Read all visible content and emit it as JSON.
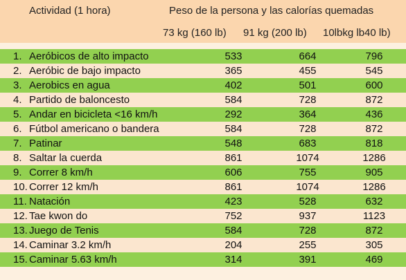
{
  "header": {
    "activity": "Actividad (1 hora)",
    "title": "Peso de la persona y las calorías quemadas",
    "col1": "73 kg (160 lb)",
    "col2": "91 kg (200 lb)",
    "col3": "10lbkg lb40 lb)"
  },
  "rows": [
    {
      "num": "1.",
      "name": "Aeróbicos de alto impacto",
      "a": "533",
      "b": "664",
      "c": "796"
    },
    {
      "num": "2.",
      "name": "Aeróbic de bajo impacto",
      "a": "365",
      "b": "455",
      "c": "545"
    },
    {
      "num": "3.",
      "name": "Aerobics en agua",
      "a": "402",
      "b": "501",
      "c": "600"
    },
    {
      "num": "4.",
      "name": "Partido de baloncesto",
      "a": "584",
      "b": "728",
      "c": "872"
    },
    {
      "num": "5.",
      "name": "Andar en bicicleta <16 km/h",
      "a": "292",
      "b": "364",
      "c": "436"
    },
    {
      "num": "6.",
      "name": "Fútbol americano o bandera",
      "a": "584",
      "b": "728",
      "c": "872"
    },
    {
      "num": "7.",
      "name": "Patinar",
      "a": "548",
      "b": "683",
      "c": "818"
    },
    {
      "num": "8.",
      "name": "Saltar la cuerda",
      "a": "861",
      "b": "1074",
      "c": "1286"
    },
    {
      "num": "9.",
      "name": "Correr 8 km/h",
      "a": "606",
      "b": "755",
      "c": "905"
    },
    {
      "num": "10.",
      "name": "Correr 12 km/h",
      "a": "861",
      "b": "1074",
      "c": "1286"
    },
    {
      "num": "11.",
      "name": "Natación",
      "a": "423",
      "b": "528",
      "c": "632"
    },
    {
      "num": "12.",
      "name": "Tae kwon do",
      "a": "752",
      "b": "937",
      "c": "1123"
    },
    {
      "num": "13.",
      "name": "Juego de Tenis",
      "a": "584",
      "b": "728",
      "c": "872"
    },
    {
      "num": "14.",
      "name": "Caminar 3.2 km/h",
      "a": "204",
      "b": "255",
      "c": "305"
    },
    {
      "num": "15.",
      "name": "Caminar 5.63 km/h",
      "a": "314",
      "b": "391",
      "c": "469"
    }
  ]
}
